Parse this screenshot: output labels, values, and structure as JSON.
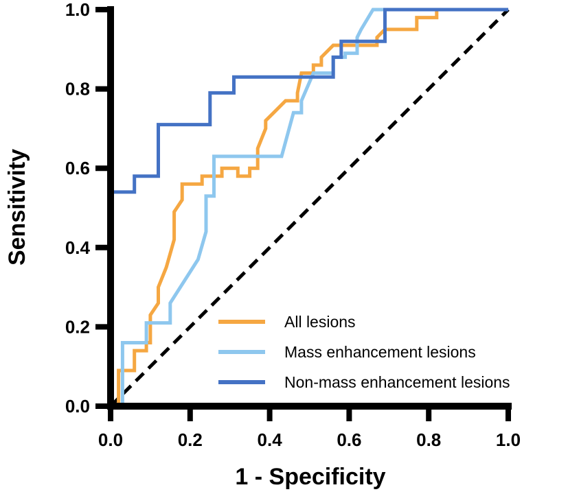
{
  "chart_data": {
    "type": "line",
    "title": "",
    "xlabel": "1 - Specificity",
    "ylabel": "Sensitivity",
    "xlim": [
      0,
      1
    ],
    "ylim": [
      0,
      1
    ],
    "xticks": [
      "0.0",
      "0.2",
      "0.4",
      "0.6",
      "0.8",
      "1.0"
    ],
    "yticks": [
      "0.0",
      "0.2",
      "0.4",
      "0.6",
      "0.8",
      "1.0"
    ],
    "grid": false,
    "legend_position": "bottom-right",
    "reference_line": {
      "style": "dashed",
      "from": [
        0,
        0
      ],
      "to": [
        1,
        1
      ],
      "color": "#000000"
    },
    "series": [
      {
        "name": "All lesions",
        "color": "#F5A742",
        "points": [
          [
            0,
            0
          ],
          [
            0.02,
            0
          ],
          [
            0.02,
            0.09
          ],
          [
            0.06,
            0.09
          ],
          [
            0.06,
            0.14
          ],
          [
            0.09,
            0.14
          ],
          [
            0.09,
            0.16
          ],
          [
            0.1,
            0.16
          ],
          [
            0.1,
            0.23
          ],
          [
            0.12,
            0.26
          ],
          [
            0.12,
            0.3
          ],
          [
            0.14,
            0.35
          ],
          [
            0.16,
            0.42
          ],
          [
            0.16,
            0.49
          ],
          [
            0.18,
            0.52
          ],
          [
            0.18,
            0.56
          ],
          [
            0.23,
            0.56
          ],
          [
            0.23,
            0.58
          ],
          [
            0.28,
            0.58
          ],
          [
            0.28,
            0.6
          ],
          [
            0.32,
            0.6
          ],
          [
            0.32,
            0.58
          ],
          [
            0.35,
            0.58
          ],
          [
            0.35,
            0.6
          ],
          [
            0.37,
            0.6
          ],
          [
            0.37,
            0.65
          ],
          [
            0.39,
            0.7
          ],
          [
            0.39,
            0.72
          ],
          [
            0.41,
            0.74
          ],
          [
            0.44,
            0.77
          ],
          [
            0.47,
            0.77
          ],
          [
            0.47,
            0.79
          ],
          [
            0.48,
            0.84
          ],
          [
            0.51,
            0.84
          ],
          [
            0.51,
            0.86
          ],
          [
            0.53,
            0.86
          ],
          [
            0.53,
            0.88
          ],
          [
            0.56,
            0.91
          ],
          [
            0.67,
            0.91
          ],
          [
            0.67,
            0.93
          ],
          [
            0.69,
            0.95
          ],
          [
            0.77,
            0.95
          ],
          [
            0.77,
            0.98
          ],
          [
            0.82,
            0.98
          ],
          [
            0.82,
            1.0
          ],
          [
            1.0,
            1.0
          ]
        ]
      },
      {
        "name": "Mass enhancement lesions",
        "color": "#8EC7EE",
        "points": [
          [
            0,
            0
          ],
          [
            0.03,
            0
          ],
          [
            0.03,
            0.16
          ],
          [
            0.09,
            0.16
          ],
          [
            0.09,
            0.21
          ],
          [
            0.15,
            0.21
          ],
          [
            0.15,
            0.26
          ],
          [
            0.22,
            0.37
          ],
          [
            0.24,
            0.44
          ],
          [
            0.24,
            0.53
          ],
          [
            0.26,
            0.53
          ],
          [
            0.26,
            0.63
          ],
          [
            0.43,
            0.63
          ],
          [
            0.46,
            0.74
          ],
          [
            0.48,
            0.74
          ],
          [
            0.48,
            0.77
          ],
          [
            0.51,
            0.84
          ],
          [
            0.56,
            0.84
          ],
          [
            0.56,
            0.88
          ],
          [
            0.59,
            0.88
          ],
          [
            0.59,
            0.89
          ],
          [
            0.62,
            0.89
          ],
          [
            0.62,
            0.93
          ],
          [
            0.63,
            0.95
          ],
          [
            0.66,
            1.0
          ],
          [
            1.0,
            1.0
          ]
        ]
      },
      {
        "name": "Non-mass enhancement lesions",
        "color": "#4472C4",
        "points": [
          [
            0,
            0
          ],
          [
            0,
            0.54
          ],
          [
            0.06,
            0.54
          ],
          [
            0.06,
            0.58
          ],
          [
            0.12,
            0.58
          ],
          [
            0.12,
            0.71
          ],
          [
            0.25,
            0.71
          ],
          [
            0.25,
            0.79
          ],
          [
            0.31,
            0.79
          ],
          [
            0.31,
            0.83
          ],
          [
            0.56,
            0.83
          ],
          [
            0.56,
            0.88
          ],
          [
            0.58,
            0.88
          ],
          [
            0.58,
            0.92
          ],
          [
            0.69,
            0.92
          ],
          [
            0.69,
            1.0
          ],
          [
            1.0,
            1.0
          ]
        ]
      }
    ]
  }
}
